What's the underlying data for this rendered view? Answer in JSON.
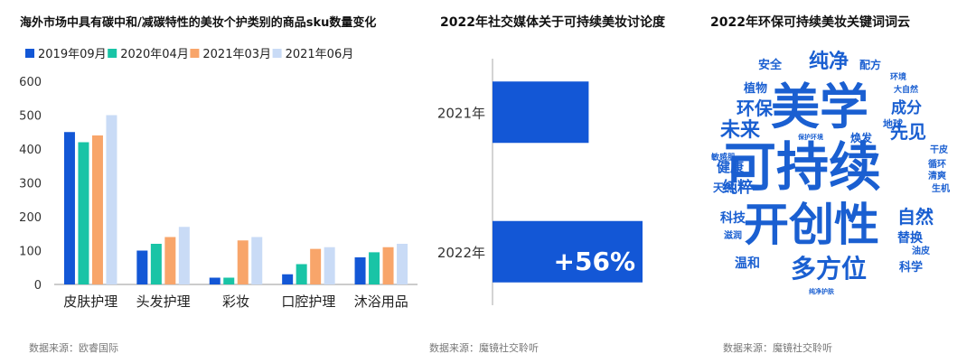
{
  "panels": [
    {
      "title": "海外市场中具有碳中和/减碳特性的美妆个护类别的商品sku数量变化",
      "source": "数据来源：欧睿国际"
    },
    {
      "title": "2022年社交媒体关于可持续美妆讨论度",
      "source": "数据来源：魔镜社交聆听"
    },
    {
      "title": "2022年环保可持续美妆关键词词云",
      "source": "数据来源：魔镜社交聆听"
    }
  ],
  "chart_data": [
    {
      "type": "bar",
      "title": "海外市场中具有碳中和/减碳特性的美妆个护类别的商品sku数量变化",
      "categories": [
        "皮肤护理",
        "头发护理",
        "彩妆",
        "口腔护理",
        "沐浴用品"
      ],
      "series": [
        {
          "name": "2019年09月",
          "color": "#1357d6",
          "values": [
            450,
            100,
            20,
            30,
            80
          ]
        },
        {
          "name": "2020年04月",
          "color": "#19c4a6",
          "values": [
            420,
            120,
            20,
            60,
            95
          ]
        },
        {
          "name": "2021年03月",
          "color": "#f8a56a",
          "values": [
            440,
            140,
            130,
            105,
            110
          ]
        },
        {
          "name": "2021年06月",
          "color": "#c9dbf6",
          "values": [
            500,
            170,
            140,
            110,
            120
          ]
        }
      ],
      "yticks": [
        0,
        100,
        200,
        300,
        400,
        500,
        600
      ],
      "ylim": [
        0,
        600
      ],
      "legend": "top"
    },
    {
      "type": "bar",
      "orientation": "horizontal",
      "title": "2022年社交媒体关于可持续美妆讨论度",
      "categories": [
        "2021年",
        "2022年"
      ],
      "values": [
        1.0,
        1.56
      ],
      "annotation": "+56%",
      "color": "#1357d6"
    }
  ],
  "wordcloud": {
    "title": "2022年环保可持续美妆关键词词云",
    "color": "#1a5fd1",
    "words": [
      {
        "text": "美学",
        "size": 54
      },
      {
        "text": "可持续",
        "size": 58
      },
      {
        "text": "开创性",
        "size": 50
      },
      {
        "text": "多方位",
        "size": 28
      },
      {
        "text": "纯净",
        "size": 22
      },
      {
        "text": "未来",
        "size": 22
      },
      {
        "text": "环保",
        "size": 20
      },
      {
        "text": "先见",
        "size": 20
      },
      {
        "text": "自然",
        "size": 20
      },
      {
        "text": "成分",
        "size": 17
      },
      {
        "text": "纯粹",
        "size": 17
      },
      {
        "text": "健康",
        "size": 15
      },
      {
        "text": "科技",
        "size": 14
      },
      {
        "text": "温和",
        "size": 14
      },
      {
        "text": "替换",
        "size": 14
      },
      {
        "text": "科学",
        "size": 13
      },
      {
        "text": "植物",
        "size": 13
      },
      {
        "text": "安全",
        "size": 13
      },
      {
        "text": "配方",
        "size": 12
      },
      {
        "text": "焕发",
        "size": 12
      },
      {
        "text": "天然",
        "size": 12
      },
      {
        "text": "地球",
        "size": 11
      },
      {
        "text": "干皮",
        "size": 10
      },
      {
        "text": "循环",
        "size": 10
      },
      {
        "text": "清爽",
        "size": 10
      },
      {
        "text": "生机",
        "size": 10
      },
      {
        "text": "滋润",
        "size": 10
      },
      {
        "text": "油皮",
        "size": 10
      },
      {
        "text": "敏感肌",
        "size": 9
      },
      {
        "text": "环境",
        "size": 9
      },
      {
        "text": "大自然",
        "size": 9
      },
      {
        "text": "保护环境",
        "size": 7
      },
      {
        "text": "纯净护肤",
        "size": 7
      }
    ]
  }
}
